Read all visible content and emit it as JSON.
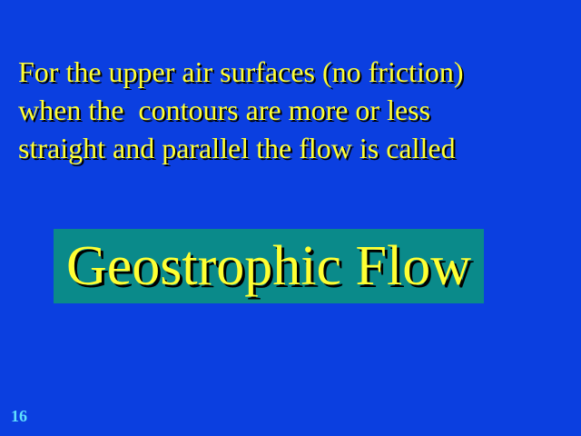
{
  "slide": {
    "background_color": "#0b3fe0",
    "text_color": "#ffff33",
    "box_color": "#0a8a8a",
    "number_color": "#5fe0ff",
    "body_lines": [
      "For the upper air surfaces (no friction)",
      "when the  contours are more or less",
      "straight and parallel the flow is called"
    ],
    "highlight_term": "Geostrophic Flow",
    "page_number": "16"
  }
}
